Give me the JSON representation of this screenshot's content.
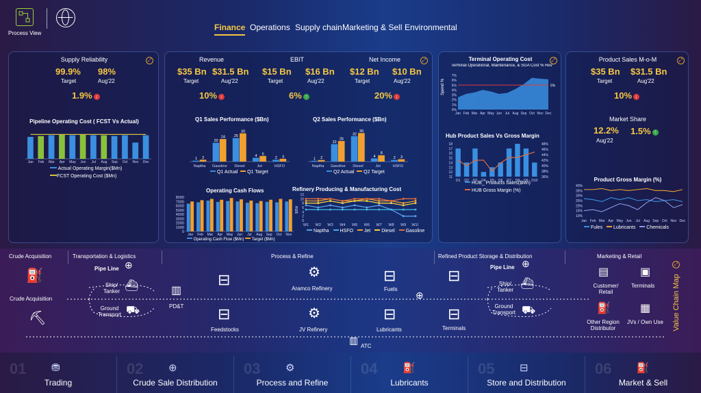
{
  "top_left": {
    "process_view": "Process View"
  },
  "tabs": [
    "Finance",
    "Operations",
    "Supply chain",
    "Marketing & Sell",
    "Environmental"
  ],
  "supply": {
    "title": "Supply Reliability",
    "v1": "99.9%",
    "v1_label": "Target",
    "v2": "98%",
    "v2_label": "Aug'22",
    "delta": "1.9%",
    "chart_title": "Pipeline Operating Cost ( FCST Vs Actual)",
    "legend1": "Actual Operating Margin($Mn)",
    "legend2": "FCST Operating Cost ($Mn)"
  },
  "finance": {
    "revenue_title": "Revenue",
    "rev_v1": "$35 Bn",
    "rev_l1": "Target",
    "rev_v2": "$31.5 Bn",
    "rev_l2": "Aug'22",
    "rev_delta": "10%",
    "ebit_title": "EBIT",
    "ebit_v1": "$15 Bn",
    "ebit_l1": "Target",
    "ebit_v2": "$16 Bn",
    "ebit_l2": "Aug'22",
    "ebit_delta": "6%",
    "ni_title": "Net Income",
    "ni_v1": "$12 Bn",
    "ni_l1": "Target",
    "ni_v2": "$10 Bn",
    "ni_l2": "Aug'22",
    "ni_delta": "20%",
    "q1_title": "Q1 Sales Performance ($Bn)",
    "q1_leg1": "Q1 Actual",
    "q1_leg2": "Q1 Target",
    "q2_title": "Q2 Sales Performance ($Bn)",
    "q2_leg1": "Q2 Actual",
    "q2_leg2": "Q2 Target",
    "ocf_title": "Operating Cash Flows",
    "ocf_leg1": "Operating Cash Flow ($Mn)",
    "ocf_leg2": "Target ($Mn)",
    "ref_title": "Refinery Producing & Manufacturing Cost",
    "ref_ylabel": "$/Bbl"
  },
  "terminal": {
    "title": "Terminal Operating Cost",
    "subtitle": "Terminal Operational, Maintenance, & SGA Cost % Rev",
    "ylabel": "Spend %",
    "target_label": "5%",
    "hub_title": "Hub Product Sales Vs Gross Margin",
    "hub_leg1": "HUB_ Products Sales($Mn)",
    "hub_leg2": "HUB Gross Margin (%)"
  },
  "product_sales": {
    "title": "Product Sales M-o-M",
    "v1": "$35 Bn",
    "l1": "Target",
    "v2": "$31.5 Bn",
    "l2": "Aug'22",
    "delta": "10%",
    "ms_title": "Market Share",
    "ms_v1": "12.2%",
    "ms_v2": "1.5%",
    "ms_l": "Aug'22",
    "pgm_title": "Product Gross Margin (%)",
    "pgm_leg": [
      "Fules",
      "Lubricants",
      "Chemicals"
    ]
  },
  "chart_data": [
    {
      "type": "bar",
      "title": "Pipeline Operating Cost ( FCST Vs Actual)",
      "categories": [
        "Jan",
        "Feb",
        "Mar",
        "Apr",
        "May",
        "Jun",
        "Jul",
        "Aug",
        "Sep",
        "Oct",
        "Nov",
        "Dec"
      ],
      "series": [
        {
          "name": "Actual Operating Margin($Mn)",
          "values": [
            27,
            28,
            29,
            30,
            29,
            30,
            29,
            29,
            28,
            29,
            20,
            29
          ]
        },
        {
          "name": "FCST Operating Cost ($Mn)",
          "values": [
            30,
            30,
            30,
            30,
            30,
            30,
            30,
            30,
            30,
            30,
            30,
            30
          ]
        }
      ],
      "ylim": [
        0,
        32
      ]
    },
    {
      "type": "bar",
      "title": "Q1 Sales Performance ($Bn)",
      "categories": [
        "Naptha",
        "Gasoline",
        "Diesel",
        "Jet",
        "HSFO"
      ],
      "series": [
        {
          "name": "Q1 Actual",
          "values": [
            1,
            20,
            25,
            4,
            2
          ]
        },
        {
          "name": "Q1 Target",
          "values": [
            2,
            24,
            30,
            6,
            3
          ]
        }
      ],
      "ylim": [
        0,
        32
      ]
    },
    {
      "type": "bar",
      "title": "Q2 Sales Performance ($Bn)",
      "categories": [
        "Naptha",
        "Gasoline",
        "Diesel",
        "Jet",
        "HSFO"
      ],
      "series": [
        {
          "name": "Q2 Actual",
          "values": [
            1,
            22,
            32,
            4,
            2
          ]
        },
        {
          "name": "Q2 Target",
          "values": [
            2,
            26,
            36,
            8,
            3
          ]
        }
      ],
      "ylim": [
        0,
        38
      ]
    },
    {
      "type": "bar",
      "title": "Operating Cash Flows",
      "categories": [
        "Jan",
        "Feb",
        "Mar",
        "Apr",
        "May",
        "Jun",
        "Jul",
        "Aug",
        "Sep",
        "Oct",
        "Nov"
      ],
      "series": [
        {
          "name": "Operating Cash Flow ($Mn)",
          "values": [
            6500,
            6800,
            7200,
            6900,
            7100,
            7000,
            6700,
            6600,
            6900,
            6800,
            7000
          ]
        },
        {
          "name": "Target ($Mn)",
          "values": [
            7000,
            7300,
            7600,
            7400,
            7800,
            7500,
            7200,
            7100,
            7400,
            7600,
            7500
          ]
        }
      ],
      "ylim": [
        0,
        8000
      ],
      "yticks": [
        0,
        1000,
        2000,
        3000,
        4000,
        5000,
        6000,
        7000,
        8000
      ]
    },
    {
      "type": "line",
      "title": "Refinery Producing & Manufacturing Cost",
      "categories": [
        "W1",
        "W2",
        "W3",
        "W4",
        "W5",
        "W6",
        "W7",
        "W8",
        "W9",
        "W10"
      ],
      "series": [
        {
          "name": "Naptha",
          "values": [
            7,
            6,
            7,
            6,
            7,
            6,
            7,
            5,
            2,
            2
          ]
        },
        {
          "name": "HSFO",
          "values": [
            5,
            5,
            5,
            5,
            5,
            5,
            5,
            5,
            5,
            5
          ]
        },
        {
          "name": "Jet",
          "values": [
            9,
            9,
            10,
            9,
            9,
            10,
            9,
            9,
            8,
            9
          ]
        },
        {
          "name": "Diesel",
          "values": [
            8,
            8,
            9,
            8,
            9,
            9,
            8,
            8,
            7,
            8
          ]
        },
        {
          "name": "Gasoline",
          "values": [
            10,
            10,
            10,
            9,
            10,
            10,
            10,
            9,
            10,
            10
          ]
        }
      ],
      "ylim": [
        0,
        12
      ]
    },
    {
      "type": "bar",
      "title": "Terminal Operating Cost",
      "categories": [
        "Jan",
        "Feb",
        "Mar",
        "Apr",
        "May",
        "Jun",
        "Jul",
        "Aug",
        "Sep",
        "Oct",
        "Nov",
        "Dec"
      ],
      "series": [
        {
          "name": "",
          "values": [
            2.5,
            3.2,
            3.5,
            4,
            3.7,
            3.2,
            3.4,
            4.2,
            5.2,
            6.5,
            6.3,
            6.2
          ]
        }
      ],
      "target": 5,
      "ylim": [
        0,
        7
      ]
    },
    {
      "type": "bar",
      "title": "Hub Product Sales Vs Gross Margin",
      "categories": [
        "D1",
        "D2",
        "D3",
        "D4",
        "D5",
        "D6",
        "D7",
        "D8",
        "D9",
        "D10"
      ],
      "series": [
        {
          "name": "HUB_ Products Sales($Mn)",
          "values": [
            17,
            14,
            17,
            12,
            13,
            14,
            17,
            18,
            17,
            14
          ]
        },
        {
          "name": "HUB Gross Margin (%)",
          "values": [
            42,
            40,
            42,
            42,
            38,
            41,
            43,
            43,
            44,
            45
          ]
        }
      ],
      "ylim": [
        11,
        18
      ],
      "y2lim": [
        36,
        48
      ]
    },
    {
      "type": "line",
      "title": "Product Gross Margin (%)",
      "categories": [
        "Jan",
        "Feb",
        "Mar",
        "Apr",
        "May",
        "Jun",
        "Jul",
        "Aug",
        "Sep",
        "Oct",
        "Nov",
        "Dec"
      ],
      "series": [
        {
          "name": "Fules",
          "values": [
            27,
            26,
            24,
            28,
            26,
            28,
            25,
            26,
            24,
            25,
            26,
            24
          ]
        },
        {
          "name": "Lubricants",
          "values": [
            36,
            36,
            37,
            35,
            36,
            35,
            36,
            37,
            35,
            35,
            34,
            36
          ]
        },
        {
          "name": "Chemicals",
          "values": [
            15,
            16,
            14,
            18,
            22,
            20,
            16,
            23,
            28,
            25,
            18,
            21
          ]
        }
      ],
      "ylim": [
        10,
        40
      ]
    }
  ],
  "value_chain": {
    "sec_crude": "Crude Acquisition",
    "sec_transport": "Transportation & Logistics",
    "sec_process": "Process & Refine",
    "sec_storage": "Refined Product Storage & Distribution",
    "sec_marketing": "Marketing & Retail",
    "crude_acq": "Crude Acquisition",
    "pipe_line": "Pipe Line",
    "ship_tanker": "Ship/ Tanker",
    "ground_transport": "Ground Transport",
    "pdt": "PD&T",
    "feedstocks": "Feedstocks",
    "aramco": "Aramco Refinery",
    "jv_refinery": "JV Refinery",
    "fuels": "Fuels",
    "lubricants": "Lubricants",
    "terminals": "Terminals",
    "pipe_line2": "Pipe Line",
    "ship_tanker2": "Ship/ Tanker",
    "ground_transport2": "Ground Transport",
    "customer_retail": "Customer/ Retail",
    "terminals2": "Terminals",
    "other_region": "Other Region Distributor",
    "jvs": "JVs / Own Use",
    "atc": "ATC",
    "vc_map": "Value Chain Map"
  },
  "bottom": [
    {
      "num": "01",
      "label": "Trading"
    },
    {
      "num": "02",
      "label": "Crude Sale Distribution"
    },
    {
      "num": "03",
      "label": "Process and Refine"
    },
    {
      "num": "04",
      "label": "Lubricants"
    },
    {
      "num": "05",
      "label": "Store and Distribution"
    },
    {
      "num": "06",
      "label": "Market & Sell"
    }
  ],
  "colors": {
    "accent": "#f6c744",
    "bar_blue": "#3a8fe0",
    "bar_orange": "#f0a030",
    "bar_green": "#8ac03a",
    "red": "#e03a3a"
  }
}
